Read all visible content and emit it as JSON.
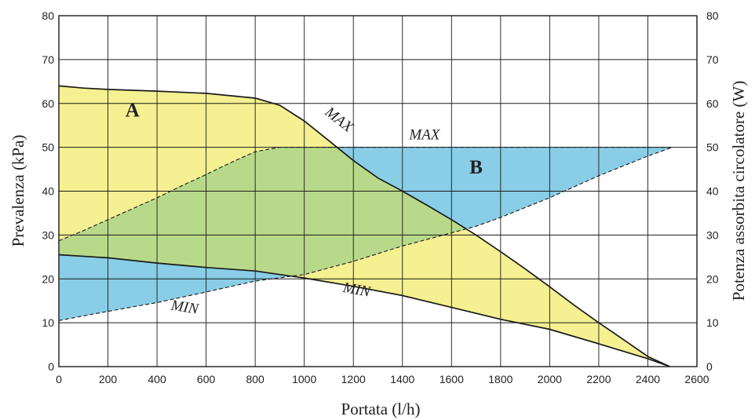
{
  "chart_data": {
    "type": "area",
    "xlabel": "Portata (l/h)",
    "ylabel": "Prevalenza (kPa)",
    "y2label": "Potenza assorbita circolatore (W)",
    "xlim": [
      0,
      2600
    ],
    "ylim": [
      0,
      80
    ],
    "y2lim": [
      0,
      80
    ],
    "x_ticks": [
      0,
      200,
      400,
      600,
      800,
      1000,
      1200,
      1400,
      1600,
      1800,
      2000,
      2200,
      2400,
      2600
    ],
    "y_ticks": [
      0,
      10,
      20,
      30,
      40,
      50,
      60,
      70,
      80
    ],
    "y2_ticks": [
      0,
      10,
      20,
      30,
      40,
      50,
      60,
      70,
      80
    ],
    "grid": true,
    "colors": {
      "region_a": "#f5f091",
      "region_b": "#89cde6",
      "overlap": "#b8d98a",
      "line": "#1a1a1a"
    },
    "regions": [
      {
        "name": "A",
        "label_at": [
          300,
          57
        ]
      },
      {
        "name": "B",
        "label_at": [
          1700,
          44
        ]
      }
    ],
    "series": [
      {
        "name": "MAX",
        "kind": "prevalenza",
        "style": "solid",
        "label_at": [
          1130,
          55.5
        ],
        "label_rotation": 38,
        "points": [
          [
            0,
            64
          ],
          [
            100,
            63.5
          ],
          [
            200,
            63.2
          ],
          [
            400,
            62.8
          ],
          [
            600,
            62.3
          ],
          [
            800,
            61.2
          ],
          [
            900,
            59.6
          ],
          [
            1000,
            56
          ],
          [
            1100,
            51.5
          ],
          [
            1200,
            47
          ],
          [
            1300,
            43
          ],
          [
            1400,
            40
          ],
          [
            1500,
            36.8
          ],
          [
            1600,
            33.5
          ],
          [
            1700,
            30
          ],
          [
            1800,
            26.2
          ],
          [
            1900,
            22.3
          ],
          [
            2000,
            18.2
          ],
          [
            2100,
            14
          ],
          [
            2200,
            10
          ],
          [
            2300,
            6.2
          ],
          [
            2400,
            2.3
          ],
          [
            2490,
            0
          ]
        ]
      },
      {
        "name": "MIN",
        "kind": "prevalenza",
        "style": "solid",
        "label_at": [
          1210,
          16.5
        ],
        "label_rotation": 10,
        "points": [
          [
            0,
            25.5
          ],
          [
            200,
            24.8
          ],
          [
            400,
            23.6
          ],
          [
            600,
            22.6
          ],
          [
            800,
            21.8
          ],
          [
            900,
            21
          ],
          [
            1000,
            20.2
          ],
          [
            1200,
            18.3
          ],
          [
            1400,
            16.2
          ],
          [
            1600,
            13.5
          ],
          [
            1800,
            10.8
          ],
          [
            2000,
            8.5
          ],
          [
            2200,
            5.2
          ],
          [
            2400,
            1.8
          ],
          [
            2490,
            0
          ]
        ]
      },
      {
        "name": "MAX",
        "kind": "potenza",
        "style": "dashed",
        "label_at": [
          1490,
          51.8
        ],
        "label_rotation": 0,
        "points": [
          [
            0,
            28.7
          ],
          [
            100,
            31
          ],
          [
            200,
            33.5
          ],
          [
            300,
            36
          ],
          [
            400,
            38.5
          ],
          [
            500,
            41.2
          ],
          [
            600,
            43.8
          ],
          [
            700,
            46.5
          ],
          [
            800,
            49
          ],
          [
            900,
            50
          ],
          [
            1000,
            50
          ],
          [
            1200,
            50
          ],
          [
            1400,
            50
          ],
          [
            1600,
            50
          ],
          [
            1800,
            50
          ],
          [
            2000,
            50
          ],
          [
            2200,
            50
          ],
          [
            2400,
            50
          ],
          [
            2500,
            50
          ]
        ]
      },
      {
        "name": "MIN",
        "kind": "potenza",
        "style": "dashed",
        "label_at": [
          510,
          12.5
        ],
        "label_rotation": 9,
        "points": [
          [
            0,
            10.5
          ],
          [
            200,
            12.6
          ],
          [
            400,
            14.6
          ],
          [
            600,
            17
          ],
          [
            800,
            19.5
          ],
          [
            1000,
            21
          ],
          [
            1200,
            24
          ],
          [
            1400,
            27.5
          ],
          [
            1600,
            30.5
          ],
          [
            1700,
            32
          ],
          [
            1800,
            34
          ],
          [
            2000,
            38.5
          ],
          [
            2200,
            43.5
          ],
          [
            2400,
            48
          ],
          [
            2500,
            50
          ]
        ]
      }
    ]
  }
}
